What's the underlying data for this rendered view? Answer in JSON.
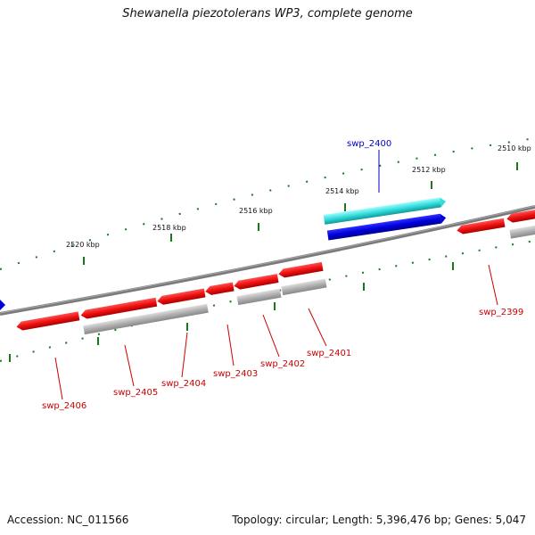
{
  "title": "Shewanella piezotolerans WP3, complete genome",
  "footer": {
    "accession": "Accession: NC_011566",
    "summary": "Topology: circular; Length: 5,396,476 bp; Genes: 5,047"
  },
  "colors": {
    "backbone": "#808080",
    "tick": "#1a7a1a",
    "forward_gene": "#0000dd",
    "selected_gene": "#22dddd",
    "reverse_gene": "#ee1111",
    "cds_bar": "#a9a9a9",
    "label_red": "#cc0000",
    "label_blue": "#0000cc"
  },
  "scale_labels": [
    "2510 kbp",
    "2512 kbp",
    "2514 kbp",
    "2516 kbp",
    "2518 kbp",
    "2520 kbp"
  ],
  "gene_labels": [
    {
      "id": "swp_2400",
      "color": "blue"
    },
    {
      "id": "swp_2399",
      "color": "red"
    },
    {
      "id": "swp_2401",
      "color": "red"
    },
    {
      "id": "swp_2402",
      "color": "red"
    },
    {
      "id": "swp_2403",
      "color": "red"
    },
    {
      "id": "swp_2404",
      "color": "red"
    },
    {
      "id": "swp_2405",
      "color": "red"
    },
    {
      "id": "swp_2406",
      "color": "red"
    }
  ]
}
